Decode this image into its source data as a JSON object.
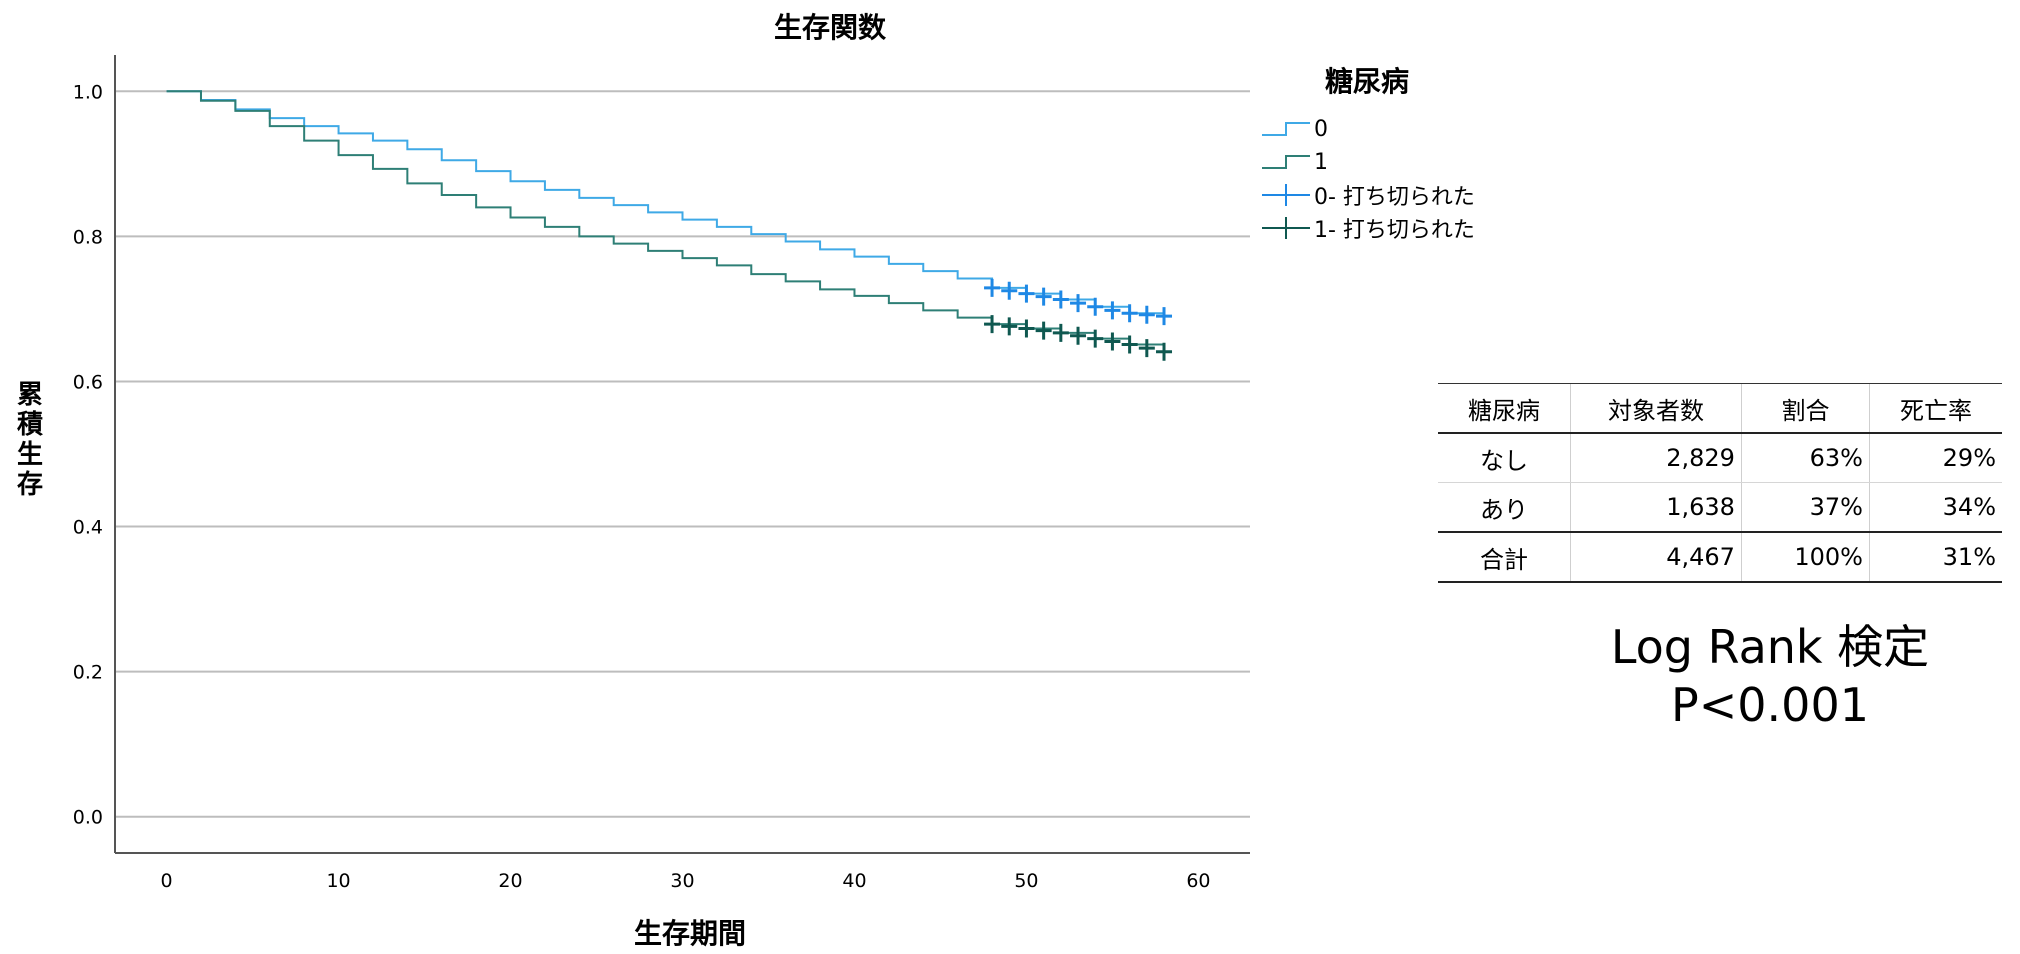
{
  "chart_data": {
    "type": "line",
    "title": "生存関数",
    "xlabel": "生存期間",
    "ylabel": "累積生存",
    "xlim": [
      -3,
      63
    ],
    "ylim": [
      -0.05,
      1.05
    ],
    "x_ticks": [
      0,
      10,
      20,
      30,
      40,
      50,
      60
    ],
    "y_ticks": [
      0.0,
      0.2,
      0.4,
      0.6,
      0.8,
      1.0
    ],
    "y_tick_labels": [
      "0.0",
      "0.2",
      "0.4",
      "0.6",
      "0.8",
      "1.0"
    ],
    "grid": "horizontal",
    "legend": {
      "title": "糖尿病",
      "position": "right",
      "entries": [
        "0",
        "1",
        "0- 打ち切られた",
        "1- 打ち切られた"
      ]
    },
    "series": [
      {
        "name": "0",
        "color": "#3fa9e6",
        "x": [
          0,
          2,
          4,
          6,
          8,
          10,
          12,
          14,
          16,
          18,
          20,
          22,
          24,
          26,
          28,
          30,
          32,
          34,
          36,
          38,
          40,
          42,
          44,
          46,
          48,
          50,
          52,
          54,
          56,
          58
        ],
        "y": [
          1.0,
          0.988,
          0.975,
          0.963,
          0.952,
          0.942,
          0.932,
          0.92,
          0.905,
          0.89,
          0.876,
          0.864,
          0.853,
          0.843,
          0.833,
          0.823,
          0.813,
          0.803,
          0.793,
          0.782,
          0.772,
          0.762,
          0.752,
          0.742,
          0.729,
          0.721,
          0.713,
          0.703,
          0.694,
          0.69
        ]
      },
      {
        "name": "1",
        "color": "#2e7f76",
        "x": [
          0,
          2,
          4,
          6,
          8,
          10,
          12,
          14,
          16,
          18,
          20,
          22,
          24,
          26,
          28,
          30,
          32,
          34,
          36,
          38,
          40,
          42,
          44,
          46,
          48,
          50,
          52,
          54,
          56,
          58
        ],
        "y": [
          1.0,
          0.987,
          0.973,
          0.952,
          0.932,
          0.912,
          0.893,
          0.873,
          0.857,
          0.84,
          0.826,
          0.813,
          0.8,
          0.79,
          0.78,
          0.77,
          0.76,
          0.748,
          0.738,
          0.727,
          0.718,
          0.708,
          0.698,
          0.688,
          0.679,
          0.673,
          0.667,
          0.659,
          0.651,
          0.641
        ]
      }
    ],
    "censored": [
      {
        "name": "0- 打ち切られた",
        "color": "#1e88e5",
        "x": [
          48,
          49,
          50,
          51,
          52,
          53,
          54,
          55,
          56,
          57,
          58
        ],
        "y": [
          0.729,
          0.725,
          0.721,
          0.717,
          0.713,
          0.708,
          0.703,
          0.698,
          0.694,
          0.692,
          0.69
        ]
      },
      {
        "name": "1- 打ち切られた",
        "color": "#0f5850",
        "x": [
          48,
          49,
          50,
          51,
          52,
          53,
          54,
          55,
          56,
          57,
          58
        ],
        "y": [
          0.679,
          0.676,
          0.673,
          0.67,
          0.667,
          0.663,
          0.659,
          0.655,
          0.651,
          0.646,
          0.641
        ]
      }
    ]
  },
  "table": {
    "headers": [
      "糖尿病",
      "対象者数",
      "割合",
      "死亡率"
    ],
    "rows": [
      [
        "なし",
        "2,829",
        "63%",
        "29%"
      ],
      [
        "あり",
        "1,638",
        "37%",
        "34%"
      ]
    ],
    "total": [
      "合計",
      "4,467",
      "100%",
      "31%"
    ]
  },
  "test": {
    "line1": "Log Rank 検定",
    "line2": "P<0.001"
  }
}
